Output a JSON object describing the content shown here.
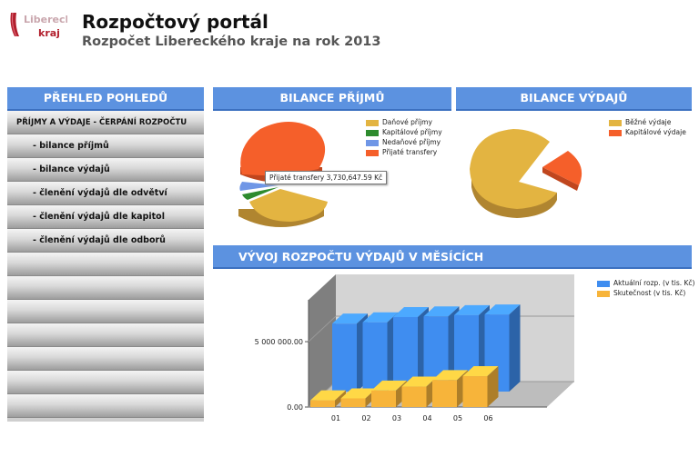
{
  "header": {
    "logo_text_line1": "Liberecký",
    "logo_text_line2": "kraj",
    "title": "Rozpočtový portál",
    "subtitle": "Rozpočet Libereckého kraje na rok 2013"
  },
  "sidebar": {
    "heading": "PŘEHLED POHLEDŮ",
    "section": "PŘÍJMY A VÝDAJE - ČERPÁNÍ ROZPOČTU",
    "items": [
      {
        "label": "- bilance příjmů"
      },
      {
        "label": "- bilance výdajů"
      },
      {
        "label": "- členění výdajů dle odvětví"
      },
      {
        "label": "- členění výdajů dle kapitol"
      },
      {
        "label": "- členění výdajů dle odborů"
      }
    ]
  },
  "income": {
    "heading": "BILANCE PŘÍJMŮ",
    "legend": [
      {
        "label": "Daňové příjmy",
        "color": "#e3b441"
      },
      {
        "label": "Kapitálové příjmy",
        "color": "#2e8b2e"
      },
      {
        "label": "Nedaňové příjmy",
        "color": "#6f96e6"
      },
      {
        "label": "Přijaté transfery",
        "color": "#f55f2a"
      }
    ],
    "tooltip": "Přijaté transfery  3,730,647.59 Kč"
  },
  "expenses": {
    "heading": "BILANCE VÝDAJŮ",
    "legend": [
      {
        "label": "Běžné výdaje",
        "color": "#e3b441"
      },
      {
        "label": "Kapitálové výdaje",
        "color": "#f55f2a"
      }
    ]
  },
  "development": {
    "heading": "VÝVOJ ROZPOČTU VÝDAJŮ V MĚSÍCÍCH"
  },
  "chart_data": [
    {
      "type": "pie",
      "title": "BILANCE PŘÍJMŮ",
      "labels": [
        "Daňové příjmy",
        "Kapitálové příjmy",
        "Nedaňové příjmy",
        "Přijaté transfery"
      ],
      "values": [
        0.27,
        0.02,
        0.04,
        0.67
      ]
    },
    {
      "type": "pie",
      "title": "BILANCE VÝDAJŮ",
      "labels": [
        "Běžné výdaje",
        "Kapitálové výdaje"
      ],
      "values": [
        0.86,
        0.14
      ]
    },
    {
      "type": "bar",
      "title": "VÝVOJ ROZPOČTU VÝDAJŮ V MĚSÍCÍCH",
      "categories": [
        "01",
        "02",
        "03",
        "04",
        "05",
        "06"
      ],
      "series": [
        {
          "name": "Aktuální rozp. (v tis. Kč)",
          "color": "#3f8df0",
          "values": [
            5200000,
            5300000,
            5700000,
            5750000,
            5850000,
            5900000
          ]
        },
        {
          "name": "Skutečnost (v tis. Kč)",
          "color": "#f7b43a",
          "values": [
            650000,
            800000,
            1400000,
            1700000,
            2200000,
            2500000
          ]
        }
      ],
      "yticks": [
        "5 000 000.00",
        "0.00"
      ],
      "yticks_values": [
        5000000,
        0
      ],
      "ylim": [
        0,
        8200000
      ]
    }
  ]
}
